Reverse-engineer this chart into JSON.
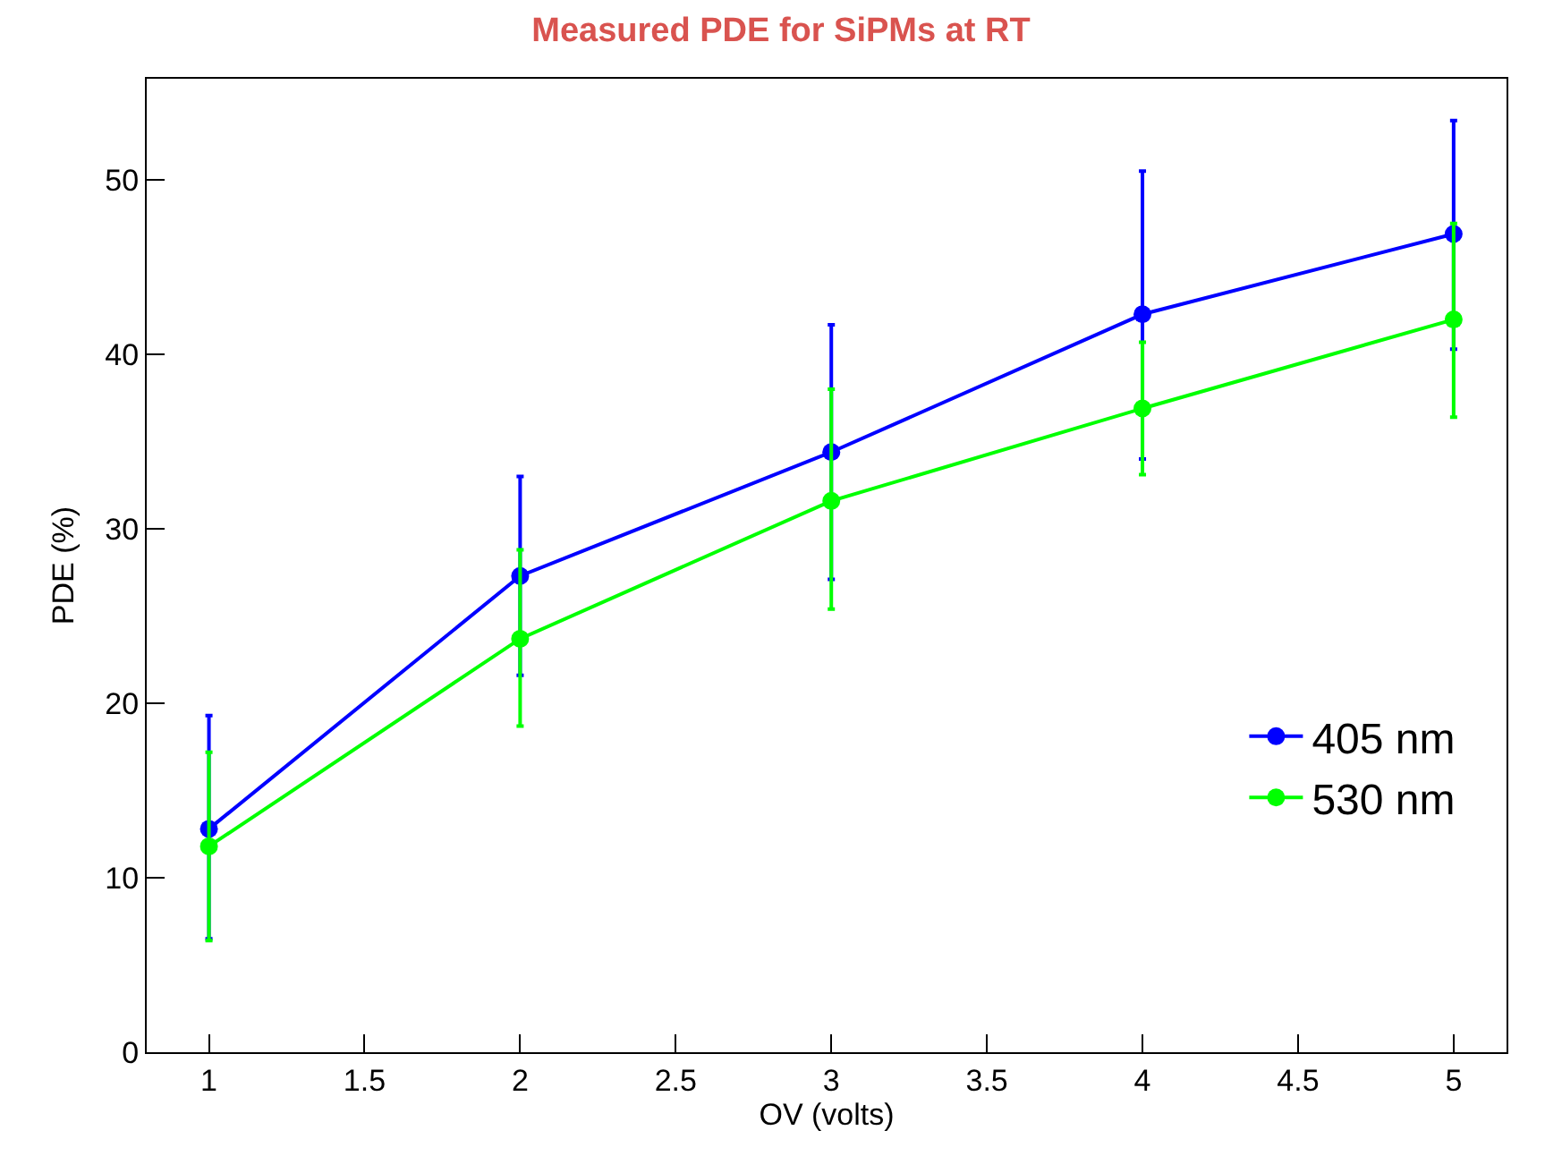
{
  "chart_data": {
    "type": "line",
    "title": "Measured PDE for SiPMs at RT",
    "xlabel": "OV (volts)",
    "ylabel": "PDE (%)",
    "x": [
      1,
      2,
      3,
      4,
      5
    ],
    "series": [
      {
        "name": "405 nm",
        "color": "#0000ff",
        "values": [
          12.8,
          27.3,
          34.4,
          42.3,
          46.9
        ],
        "errors": [
          [
            6.5,
            19.3
          ],
          [
            21.6,
            33.0
          ],
          [
            27.1,
            41.7
          ],
          [
            34.0,
            50.5
          ],
          [
            40.3,
            53.4
          ]
        ]
      },
      {
        "name": "530 nm",
        "color": "#00ff00",
        "values": [
          11.8,
          23.7,
          31.6,
          36.9,
          42.0
        ],
        "errors": [
          [
            6.4,
            17.2
          ],
          [
            18.7,
            28.8
          ],
          [
            25.4,
            38.0
          ],
          [
            33.1,
            40.7
          ],
          [
            36.4,
            47.5
          ]
        ]
      }
    ],
    "xlim": [
      0.8,
      5.17
    ],
    "xticks": [
      1,
      1.5,
      2,
      2.5,
      3,
      3.5,
      4,
      4.5,
      5
    ],
    "ylim": [
      0,
      55.8
    ],
    "yticks": [
      0,
      10,
      20,
      30,
      40,
      50
    ],
    "legend": "bottom right",
    "marker": "circle",
    "line_style": "solid"
  }
}
